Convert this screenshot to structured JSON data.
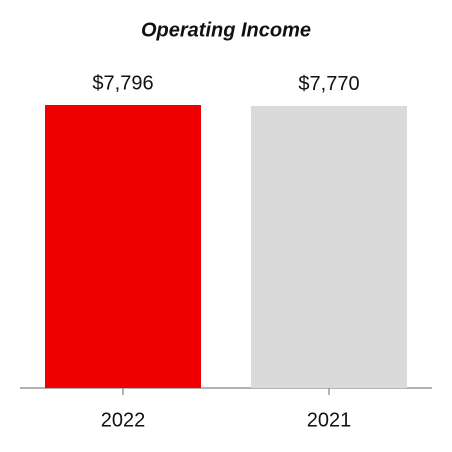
{
  "chart_data": {
    "type": "bar",
    "title": "Operating Income",
    "categories": [
      "2022",
      "2021"
    ],
    "values": [
      7796,
      7770
    ],
    "value_labels": [
      "$7,796",
      "$7,770"
    ],
    "colors": [
      "#ee0000",
      "#d9dad9"
    ]
  }
}
